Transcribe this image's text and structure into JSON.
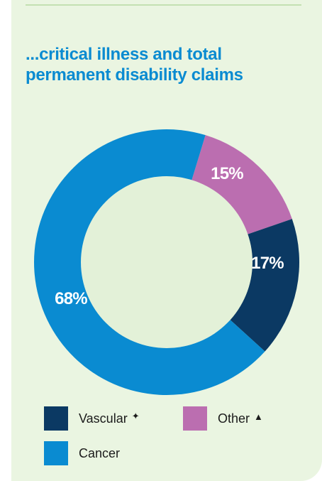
{
  "title": {
    "line1": "...critical illness and total",
    "line2": "permanent disability claims"
  },
  "chart_data": {
    "type": "pie",
    "donut": true,
    "categories": [
      "Other",
      "Vascular",
      "Cancer"
    ],
    "values": [
      15,
      17,
      68
    ],
    "value_labels": [
      "15%",
      "17%",
      "68%"
    ],
    "colors": {
      "Other": "#bb6eb0",
      "Vascular": "#0b3963",
      "Cancer": "#0a8bd1",
      "center": "#e3f1d8",
      "label_light": "#ffffff"
    }
  },
  "legend": [
    {
      "label": "Vascular",
      "mark": "✦",
      "color": "#0b3963"
    },
    {
      "label": "Other",
      "mark": "▲",
      "color": "#bb6eb0"
    },
    {
      "label": "Cancer",
      "mark": "",
      "color": "#0a8bd1"
    }
  ]
}
